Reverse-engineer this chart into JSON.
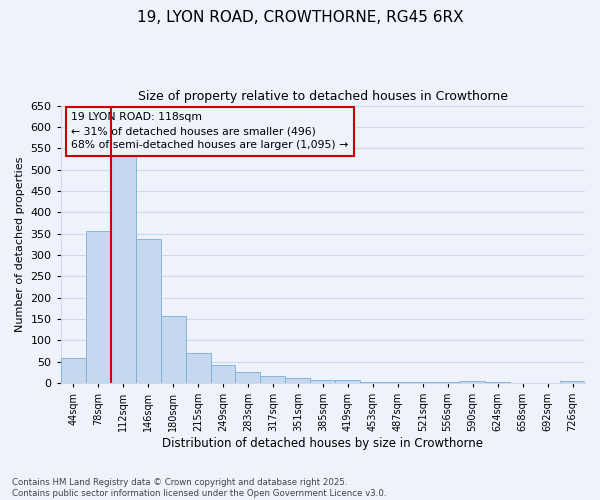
{
  "title_line1": "19, LYON ROAD, CROWTHORNE, RG45 6RX",
  "title_line2": "Size of property relative to detached houses in Crowthorne",
  "xlabel": "Distribution of detached houses by size in Crowthorne",
  "ylabel": "Number of detached properties",
  "categories": [
    "44sqm",
    "78sqm",
    "112sqm",
    "146sqm",
    "180sqm",
    "215sqm",
    "249sqm",
    "283sqm",
    "317sqm",
    "351sqm",
    "385sqm",
    "419sqm",
    "453sqm",
    "487sqm",
    "521sqm",
    "556sqm",
    "590sqm",
    "624sqm",
    "658sqm",
    "692sqm",
    "726sqm"
  ],
  "values": [
    58,
    355,
    545,
    337,
    158,
    70,
    43,
    25,
    17,
    12,
    8,
    8,
    3,
    3,
    2,
    2,
    5,
    2,
    1,
    1,
    5
  ],
  "bar_color": "#c5d8f0",
  "bar_edge_color": "#7bafd4",
  "bg_color": "#eef2fb",
  "grid_color": "#d0d8ea",
  "annotation_text": "19 LYON ROAD: 118sqm\n← 31% of detached houses are smaller (496)\n68% of semi-detached houses are larger (1,095) →",
  "vline_color": "#cc0000",
  "vline_index": 2,
  "ylim": [
    0,
    650
  ],
  "yticks": [
    0,
    50,
    100,
    150,
    200,
    250,
    300,
    350,
    400,
    450,
    500,
    550,
    600,
    650
  ],
  "footnote": "Contains HM Land Registry data © Crown copyright and database right 2025.\nContains public sector information licensed under the Open Government Licence v3.0."
}
